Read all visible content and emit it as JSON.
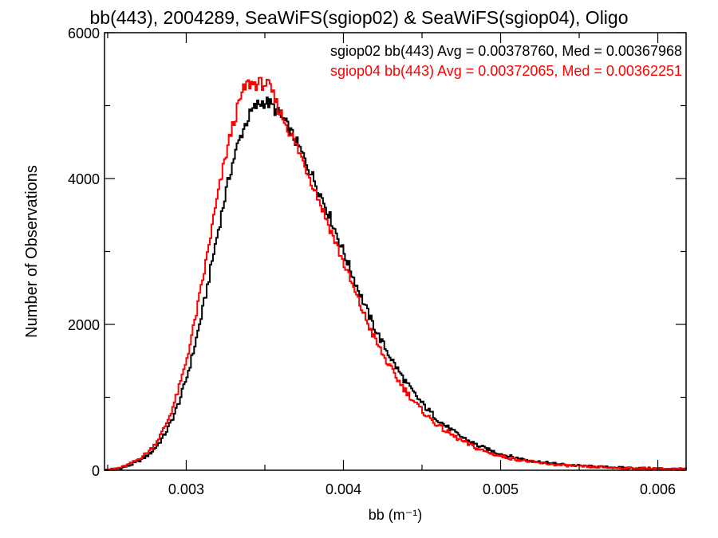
{
  "chart_data": {
    "type": "line",
    "title": "bb(443), 2004289, SeaWiFS(sgiop02) & SeaWiFS(sgiop04), Oligo",
    "xlabel": "bb (m⁻¹)",
    "ylabel": "Number of Observations",
    "xlim": [
      0.00248,
      0.00618
    ],
    "ylim": [
      0,
      6000
    ],
    "xticks": [
      0.003,
      0.004,
      0.005,
      0.006
    ],
    "xtick_labels": [
      "0.003",
      "0.004",
      "0.005",
      "0.006"
    ],
    "yticks": [
      0,
      2000,
      4000,
      6000
    ],
    "ytick_labels": [
      "0",
      "2000",
      "4000",
      "6000"
    ],
    "grid": false,
    "legend": "top-right",
    "series": [
      {
        "name": "sgiop02",
        "label": "sgiop02 bb(443) Avg = 0.00378760, Med = 0.00367968",
        "color": "#000000",
        "x": [
          0.0025,
          0.0026,
          0.0027,
          0.0028,
          0.0029,
          0.003,
          0.0031,
          0.0032,
          0.0033,
          0.0034,
          0.0035,
          0.0036,
          0.0037,
          0.0038,
          0.0039,
          0.004,
          0.0041,
          0.0042,
          0.0043,
          0.0044,
          0.0045,
          0.0046,
          0.0047,
          0.0048,
          0.0049,
          0.005,
          0.0051,
          0.0052,
          0.0053,
          0.0054,
          0.0055,
          0.0056,
          0.0057,
          0.0058,
          0.0059,
          0.006,
          0.0061,
          0.0062
        ],
        "y": [
          5,
          40,
          130,
          300,
          650,
          1250,
          2150,
          3250,
          4250,
          4850,
          5050,
          4850,
          4500,
          4050,
          3550,
          3000,
          2450,
          1950,
          1550,
          1200,
          920,
          700,
          530,
          400,
          300,
          225,
          170,
          130,
          100,
          78,
          62,
          50,
          40,
          33,
          28,
          24,
          20,
          18
        ]
      },
      {
        "name": "sgiop04",
        "label": "sgiop04 bb(443) Avg = 0.00372065, Med = 0.00362251",
        "color": "#ff0000",
        "x": [
          0.0025,
          0.0026,
          0.0027,
          0.0028,
          0.0029,
          0.003,
          0.0031,
          0.0032,
          0.0033,
          0.0034,
          0.0035,
          0.0036,
          0.0037,
          0.0038,
          0.0039,
          0.004,
          0.0041,
          0.0042,
          0.0043,
          0.0044,
          0.0045,
          0.0046,
          0.0047,
          0.0048,
          0.0049,
          0.005,
          0.0051,
          0.0052,
          0.0053,
          0.0054,
          0.0055,
          0.0056,
          0.0057,
          0.0058,
          0.0059,
          0.006,
          0.0061,
          0.0062
        ],
        "y": [
          5,
          50,
          160,
          360,
          780,
          1500,
          2550,
          3750,
          4750,
          5300,
          5300,
          4900,
          4450,
          3950,
          3400,
          2850,
          2300,
          1800,
          1400,
          1080,
          820,
          620,
          470,
          350,
          260,
          195,
          150,
          115,
          88,
          68,
          55,
          44,
          36,
          30,
          25,
          21,
          18,
          16
        ]
      }
    ]
  }
}
